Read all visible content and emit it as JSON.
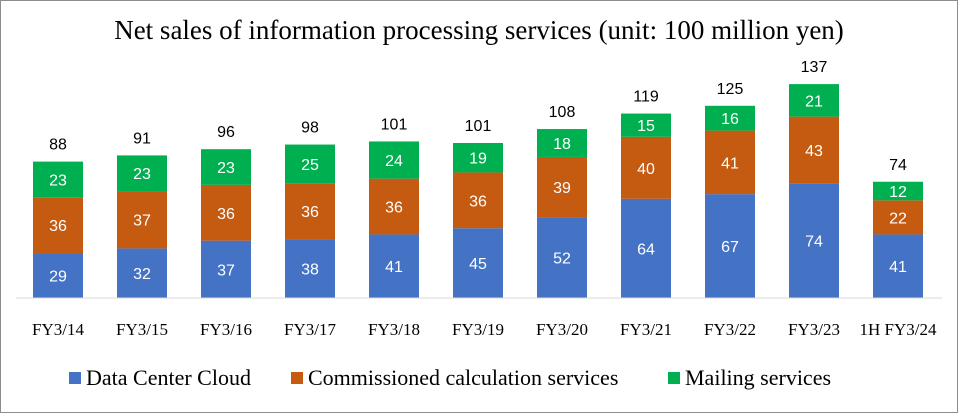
{
  "chart_data": {
    "type": "bar",
    "stacked": true,
    "title": "Net sales of information processing services (unit: 100 million yen)",
    "categories": [
      "FY3/14",
      "FY3/15",
      "FY3/16",
      "FY3/17",
      "FY3/18",
      "FY3/19",
      "FY3/20",
      "FY3/21",
      "FY3/22",
      "FY3/23",
      "1H FY3/24"
    ],
    "series": [
      {
        "name": "Data Center Cloud",
        "color": "#4472c4",
        "values": [
          29,
          32,
          37,
          38,
          41,
          45,
          52,
          64,
          67,
          74,
          41
        ]
      },
      {
        "name": "Commissioned calculation services",
        "color": "#c55a11",
        "values": [
          36,
          37,
          36,
          36,
          36,
          36,
          39,
          40,
          41,
          43,
          22
        ]
      },
      {
        "name": "Mailing services",
        "color": "#00b050",
        "values": [
          23,
          23,
          23,
          25,
          24,
          19,
          18,
          15,
          16,
          21,
          12
        ]
      }
    ],
    "totals": [
      "88",
      "91",
      "96",
      "98",
      "101",
      "101",
      "108",
      "119",
      "125",
      "137",
      "74"
    ],
    "ylim": [
      0,
      150
    ],
    "grid": false,
    "legend_position": "bottom"
  }
}
